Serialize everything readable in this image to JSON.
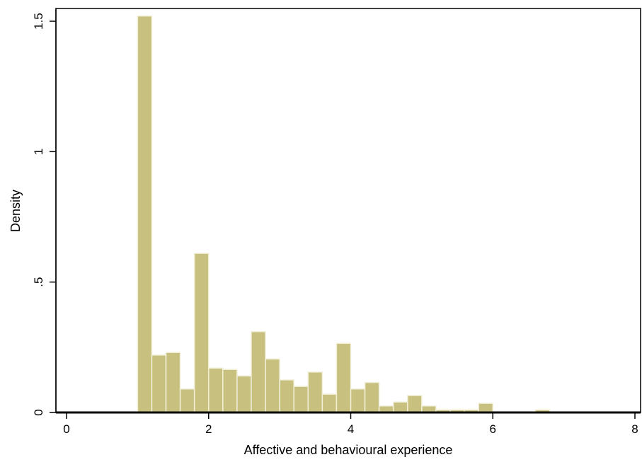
{
  "chart_data": {
    "type": "bar",
    "title": "",
    "xlabel": "Affective and behavioural experience",
    "ylabel": "Density",
    "xlim": [
      0,
      8
    ],
    "ylim": [
      0,
      1.5
    ],
    "x_ticks": [
      {
        "value": 0,
        "label": "0"
      },
      {
        "value": 2,
        "label": "2"
      },
      {
        "value": 4,
        "label": "4"
      },
      {
        "value": 6,
        "label": "6"
      },
      {
        "value": 8,
        "label": "8"
      }
    ],
    "y_ticks": [
      {
        "value": 0,
        "label": "0"
      },
      {
        "value": 0.5,
        "label": ".5"
      },
      {
        "value": 1,
        "label": "1"
      },
      {
        "value": 1.5,
        "label": "1.5"
      }
    ],
    "bin_width": 0.2,
    "bins": [
      {
        "x0": 1.0,
        "x1": 1.2,
        "density": 1.52
      },
      {
        "x0": 1.2,
        "x1": 1.4,
        "density": 0.22
      },
      {
        "x0": 1.4,
        "x1": 1.6,
        "density": 0.23
      },
      {
        "x0": 1.6,
        "x1": 1.8,
        "density": 0.09
      },
      {
        "x0": 1.8,
        "x1": 2.0,
        "density": 0.61
      },
      {
        "x0": 2.0,
        "x1": 2.2,
        "density": 0.17
      },
      {
        "x0": 2.2,
        "x1": 2.4,
        "density": 0.165
      },
      {
        "x0": 2.4,
        "x1": 2.6,
        "density": 0.14
      },
      {
        "x0": 2.6,
        "x1": 2.8,
        "density": 0.31
      },
      {
        "x0": 2.8,
        "x1": 3.0,
        "density": 0.205
      },
      {
        "x0": 3.0,
        "x1": 3.2,
        "density": 0.125
      },
      {
        "x0": 3.2,
        "x1": 3.4,
        "density": 0.1
      },
      {
        "x0": 3.4,
        "x1": 3.6,
        "density": 0.155
      },
      {
        "x0": 3.6,
        "x1": 3.8,
        "density": 0.07
      },
      {
        "x0": 3.8,
        "x1": 4.0,
        "density": 0.265
      },
      {
        "x0": 4.0,
        "x1": 4.2,
        "density": 0.09
      },
      {
        "x0": 4.2,
        "x1": 4.4,
        "density": 0.115
      },
      {
        "x0": 4.4,
        "x1": 4.6,
        "density": 0.025
      },
      {
        "x0": 4.6,
        "x1": 4.8,
        "density": 0.04
      },
      {
        "x0": 4.8,
        "x1": 5.0,
        "density": 0.065
      },
      {
        "x0": 5.0,
        "x1": 5.2,
        "density": 0.025
      },
      {
        "x0": 5.2,
        "x1": 5.4,
        "density": 0.01
      },
      {
        "x0": 5.4,
        "x1": 5.6,
        "density": 0.01
      },
      {
        "x0": 5.6,
        "x1": 5.8,
        "density": 0.01
      },
      {
        "x0": 5.8,
        "x1": 6.0,
        "density": 0.035
      },
      {
        "x0": 6.6,
        "x1": 6.8,
        "density": 0.01
      }
    ],
    "grid": false,
    "legend": "none",
    "colors": {
      "bar_fill": "#c8c07e",
      "bar_outline": "#f2efd9",
      "axis": "#000000",
      "background": "#ffffff"
    }
  }
}
